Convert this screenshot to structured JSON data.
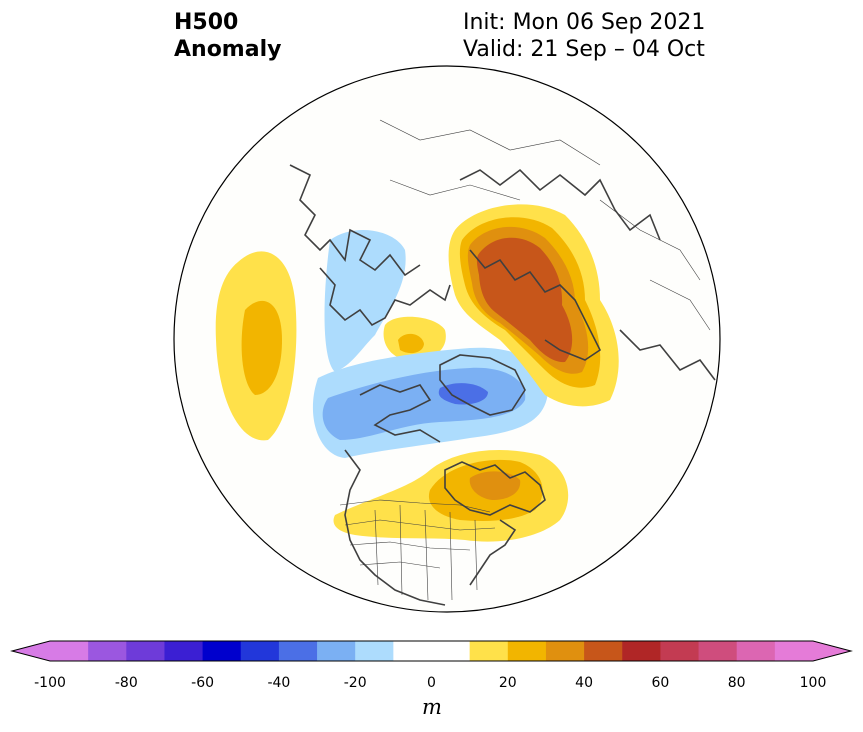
{
  "header": {
    "title_line1": "H500",
    "title_line2": "Anomaly",
    "init_text": "Init: Mon 06 Sep 2021",
    "valid_text": "Valid: 21 Sep – 04 Oct"
  },
  "colorbar": {
    "unit": "m",
    "tick_labels": [
      "-100",
      "-80",
      "-60",
      "-40",
      "-20",
      "0",
      "20",
      "40",
      "60",
      "80",
      "100"
    ],
    "min": -100,
    "max": 100,
    "step": 10,
    "under_color": "#d77be6",
    "over_color": "#e57bd8",
    "colors": [
      "#d77be6",
      "#9b57e0",
      "#6e3bd9",
      "#3b1fd3",
      "#0000cd",
      "#2237da",
      "#4b6fe6",
      "#7bb0f3",
      "#addcfd",
      "#ffffff",
      "#ffffff",
      "#ffe14a",
      "#f2b500",
      "#e0900f",
      "#c7561a",
      "#b02626",
      "#c33b52",
      "#cf4d7d",
      "#dc66b2",
      "#e57bd8"
    ]
  },
  "map": {
    "projection": "north-polar-stereographic",
    "field": "500 hPa geopotential height anomaly",
    "features": [
      "coastlines",
      "country borders",
      "US state borders"
    ]
  }
}
